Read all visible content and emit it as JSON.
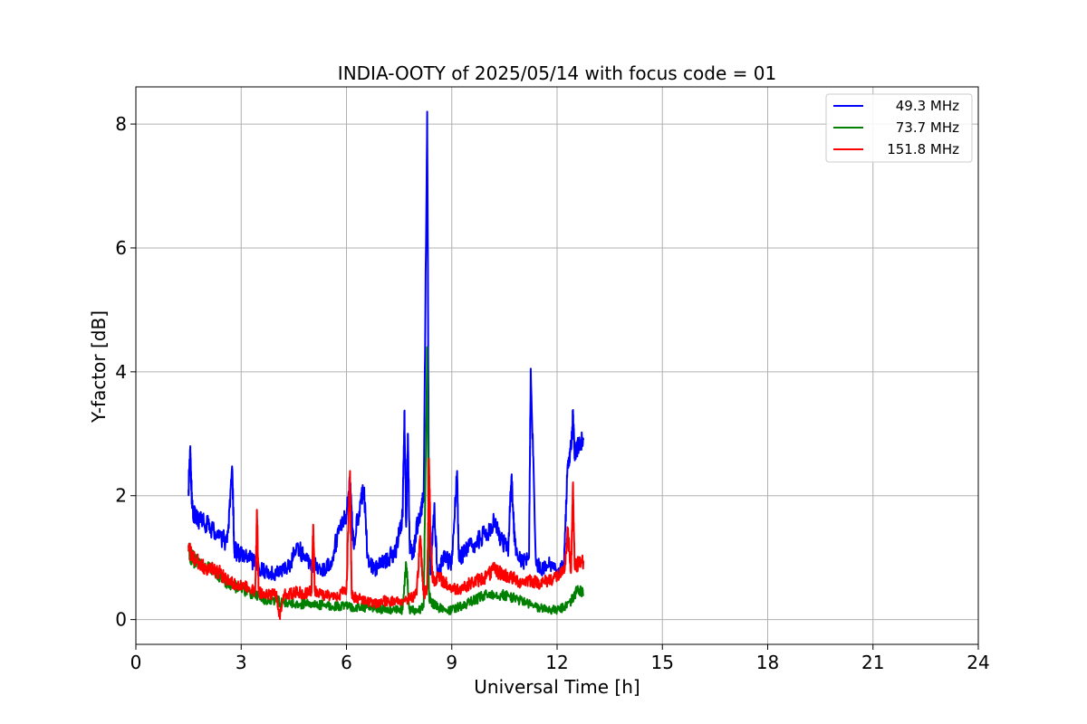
{
  "chart_data": {
    "type": "line",
    "title": "INDIA-OOTY of 2025/05/14 with focus code = 01",
    "xlabel": "Universal Time [h]",
    "ylabel": "Y-factor [dB]",
    "xlim": [
      0,
      24
    ],
    "ylim": [
      -0.4,
      8.6
    ],
    "xticks": [
      0,
      3,
      6,
      9,
      12,
      15,
      18,
      21,
      24
    ],
    "yticks": [
      0,
      2,
      4,
      6,
      8
    ],
    "xtick_labels": [
      "0",
      "3",
      "6",
      "9",
      "12",
      "15",
      "18",
      "21",
      "24"
    ],
    "ytick_labels": [
      "0",
      "2",
      "4",
      "6",
      "8"
    ],
    "grid": true,
    "legend_position": "top-right",
    "series": [
      {
        "name": "49.3 MHz",
        "color": "#0000ff",
        "x": [
          1.5,
          1.55,
          1.6,
          1.65,
          1.7,
          1.8,
          2.0,
          2.2,
          2.4,
          2.6,
          2.75,
          2.8,
          2.85,
          3.0,
          3.2,
          3.4,
          3.6,
          3.8,
          4.0,
          4.2,
          4.4,
          4.6,
          4.8,
          5.0,
          5.2,
          5.4,
          5.6,
          5.8,
          6.0,
          6.1,
          6.2,
          6.4,
          6.5,
          6.6,
          6.8,
          7.0,
          7.2,
          7.4,
          7.6,
          7.65,
          7.7,
          7.75,
          7.8,
          7.9,
          8.0,
          8.1,
          8.2,
          8.3,
          8.35,
          8.4,
          8.5,
          8.6,
          8.7,
          8.8,
          9.0,
          9.15,
          9.2,
          9.4,
          9.6,
          9.8,
          10.0,
          10.2,
          10.4,
          10.6,
          10.7,
          10.8,
          11.0,
          11.2,
          11.25,
          11.4,
          11.6,
          11.8,
          12.0,
          12.2,
          12.3,
          12.4,
          12.45,
          12.5,
          12.6,
          12.75
        ],
        "y": [
          2.1,
          2.8,
          1.8,
          1.7,
          1.65,
          1.6,
          1.55,
          1.45,
          1.35,
          1.25,
          2.4,
          1.15,
          1.1,
          1.05,
          1.0,
          0.9,
          0.8,
          0.75,
          0.75,
          0.8,
          0.9,
          1.2,
          1.0,
          0.9,
          0.85,
          0.8,
          1.0,
          1.5,
          1.7,
          2.2,
          1.2,
          1.9,
          2.1,
          1.0,
          0.8,
          0.9,
          1.0,
          1.1,
          1.7,
          3.35,
          1.5,
          3.0,
          1.2,
          1.0,
          1.5,
          1.7,
          2.0,
          8.2,
          1.5,
          0.8,
          1.8,
          0.7,
          0.9,
          1.0,
          0.9,
          2.4,
          1.0,
          1.1,
          1.2,
          1.3,
          1.4,
          1.6,
          1.3,
          1.1,
          2.3,
          1.2,
          0.9,
          1.0,
          4.05,
          0.9,
          0.8,
          0.9,
          0.8,
          0.9,
          2.5,
          2.8,
          3.3,
          2.7,
          2.8,
          2.9
        ]
      },
      {
        "name": "73.7 MHz",
        "color": "#008000",
        "x": [
          1.5,
          1.6,
          1.8,
          2.0,
          2.2,
          2.4,
          2.6,
          2.8,
          3.0,
          3.2,
          3.4,
          3.6,
          3.8,
          4.0,
          4.2,
          4.4,
          4.6,
          4.8,
          5.0,
          5.2,
          5.4,
          5.6,
          5.8,
          6.0,
          6.2,
          6.4,
          6.6,
          6.8,
          7.0,
          7.2,
          7.4,
          7.6,
          7.7,
          7.8,
          7.9,
          8.0,
          8.2,
          8.3,
          8.35,
          8.4,
          8.5,
          8.6,
          8.8,
          9.0,
          9.2,
          9.4,
          9.6,
          9.8,
          10.0,
          10.2,
          10.4,
          10.6,
          10.8,
          11.0,
          11.2,
          11.4,
          11.6,
          11.8,
          12.0,
          12.2,
          12.4,
          12.5,
          12.6,
          12.75
        ],
        "y": [
          1.1,
          1.0,
          0.9,
          0.85,
          0.8,
          0.7,
          0.6,
          0.55,
          0.5,
          0.45,
          0.4,
          0.35,
          0.3,
          0.3,
          0.28,
          0.27,
          0.26,
          0.25,
          0.25,
          0.24,
          0.23,
          0.22,
          0.22,
          0.21,
          0.2,
          0.2,
          0.2,
          0.18,
          0.17,
          0.16,
          0.15,
          0.16,
          0.9,
          0.15,
          0.15,
          0.14,
          0.2,
          4.4,
          0.4,
          0.3,
          0.25,
          0.2,
          0.15,
          0.15,
          0.2,
          0.25,
          0.3,
          0.35,
          0.4,
          0.42,
          0.4,
          0.38,
          0.35,
          0.3,
          0.25,
          0.2,
          0.18,
          0.16,
          0.15,
          0.2,
          0.3,
          0.4,
          0.5,
          0.4
        ]
      },
      {
        "name": "151.8 MHz",
        "color": "#ff0000",
        "x": [
          1.5,
          1.6,
          1.8,
          2.0,
          2.2,
          2.4,
          2.6,
          2.8,
          3.0,
          3.2,
          3.4,
          3.45,
          3.5,
          3.6,
          3.8,
          4.0,
          4.1,
          4.2,
          4.4,
          4.6,
          4.8,
          5.0,
          5.05,
          5.1,
          5.2,
          5.4,
          5.6,
          5.8,
          6.0,
          6.1,
          6.15,
          6.2,
          6.4,
          6.6,
          6.8,
          7.0,
          7.2,
          7.4,
          7.6,
          7.8,
          8.0,
          8.1,
          8.2,
          8.3,
          8.35,
          8.4,
          8.45,
          8.5,
          8.6,
          8.8,
          9.0,
          9.2,
          9.4,
          9.6,
          9.8,
          10.0,
          10.2,
          10.4,
          10.6,
          10.8,
          11.0,
          11.2,
          11.4,
          11.6,
          11.8,
          12.0,
          12.2,
          12.3,
          12.4,
          12.45,
          12.5,
          12.6,
          12.75
        ],
        "y": [
          1.2,
          1.0,
          0.9,
          0.85,
          0.8,
          0.75,
          0.65,
          0.6,
          0.55,
          0.5,
          0.45,
          1.75,
          0.45,
          0.4,
          0.4,
          0.4,
          0.05,
          0.4,
          0.42,
          0.45,
          0.42,
          0.45,
          1.5,
          0.45,
          0.42,
          0.4,
          0.38,
          0.4,
          0.5,
          2.4,
          0.4,
          0.35,
          0.35,
          0.3,
          0.25,
          0.3,
          0.3,
          0.3,
          0.3,
          0.35,
          0.4,
          1.35,
          0.4,
          0.5,
          2.6,
          1.2,
          0.7,
          0.65,
          0.7,
          0.6,
          0.5,
          0.5,
          0.55,
          0.6,
          0.65,
          0.7,
          0.8,
          0.75,
          0.7,
          0.65,
          0.6,
          0.65,
          0.6,
          0.6,
          0.65,
          0.7,
          0.75,
          1.4,
          0.8,
          2.15,
          0.85,
          0.9,
          0.95
        ]
      }
    ]
  }
}
